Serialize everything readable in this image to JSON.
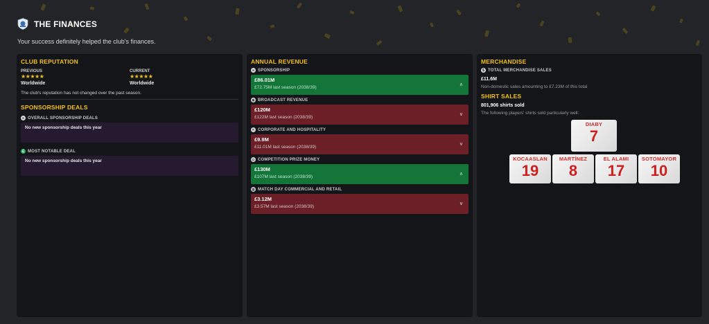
{
  "header": {
    "title": "THE FINANCES",
    "subtitle": "Your success definitely helped the club's finances."
  },
  "club_reputation": {
    "title": "CLUB REPUTATION",
    "previous_label": "PREVIOUS",
    "previous_stars": "★★★★★",
    "previous_value": "Worldwide",
    "current_label": "CURRENT",
    "current_stars": "★★★★★",
    "current_value": "Worldwide",
    "note": "The club's reputation has not changed over the past season."
  },
  "sponsorship_deals": {
    "title": "SPONSORSHIP DEALS",
    "overall_label": "OVERALL SPONSORSHIP DEALS",
    "overall_text": "No new sponsorship deals this year",
    "notable_label": "MOST NOTABLE DEAL",
    "notable_text": "No new sponsorship deals this year"
  },
  "annual_revenue": {
    "title": "ANNUAL REVENUE",
    "items": [
      {
        "label": "SPONSORSHIP",
        "value": "£86.01M",
        "last": "£72.75M last season (2038/39)",
        "trend": "up",
        "arrow": "∧"
      },
      {
        "label": "BROADCAST REVENUE",
        "value": "£120M",
        "last": "£122M last season (2038/39)",
        "trend": "down",
        "arrow": "∨"
      },
      {
        "label": "CORPORATE AND HOSPITALITY",
        "value": "£9.9M",
        "last": "£11.01M last season (2038/39)",
        "trend": "down",
        "arrow": "∨"
      },
      {
        "label": "COMPETITION PRIZE MONEY",
        "value": "£130M",
        "last": "£107M last season (2038/39)",
        "trend": "up",
        "arrow": "∧"
      },
      {
        "label": "MATCH DAY COMMERCIAL AND RETAIL",
        "value": "£3.12M",
        "last": "£3.57M last season (2038/39)",
        "trend": "down",
        "arrow": "∨"
      }
    ]
  },
  "merchandise": {
    "title": "MERCHANDISE",
    "total_label": "TOTAL MERCHANDISE SALES",
    "total_value": "£11.6M",
    "total_note": "Non-domestic sales amounting to £7.23M of this total",
    "shirt_title": "SHIRT SALES",
    "shirts_sold": "801,906 shirts sold",
    "shirts_note": "The following players' shirts sold particularly well:",
    "shirts": [
      {
        "name": "DIABY",
        "number": "7"
      },
      {
        "name": "KOCAASLAN",
        "number": "19"
      },
      {
        "name": "MARTÍNEZ",
        "number": "8"
      },
      {
        "name": "EL ALAMI",
        "number": "17"
      },
      {
        "name": "SOTOMAYOR",
        "number": "10"
      }
    ]
  },
  "colors": {
    "accent": "#f2c11b",
    "up": "#137638",
    "down": "#6c1f26",
    "deal_box": "#261a30",
    "panel": "#141518",
    "background": "#232428"
  }
}
